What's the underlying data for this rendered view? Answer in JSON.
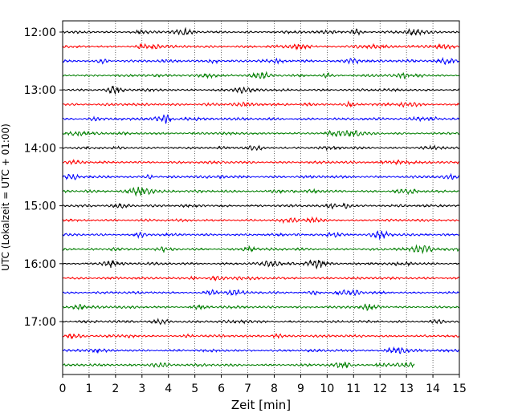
{
  "chart_data": {
    "type": "line",
    "title": "",
    "xlabel": "Zeit  [min]",
    "ylabel": "UTC (Lokalzeit = UTC + 01:00)",
    "xlim": [
      0,
      15
    ],
    "x_ticks": [
      "0",
      "1",
      "2",
      "3",
      "4",
      "5",
      "6",
      "7",
      "8",
      "9",
      "10",
      "11",
      "12",
      "13",
      "14",
      "15"
    ],
    "y_ticks": [
      "12:00",
      "13:00",
      "14:00",
      "15:00",
      "16:00",
      "17:00"
    ],
    "grid": "vertical dotted",
    "trace_interval_min": 15,
    "trace_start": "12:00",
    "trace_end": "17:45",
    "last_trace_end_min": 13.3,
    "trace_colors": [
      "#000000",
      "#ff0000",
      "#0000ff",
      "#007f00"
    ]
  }
}
